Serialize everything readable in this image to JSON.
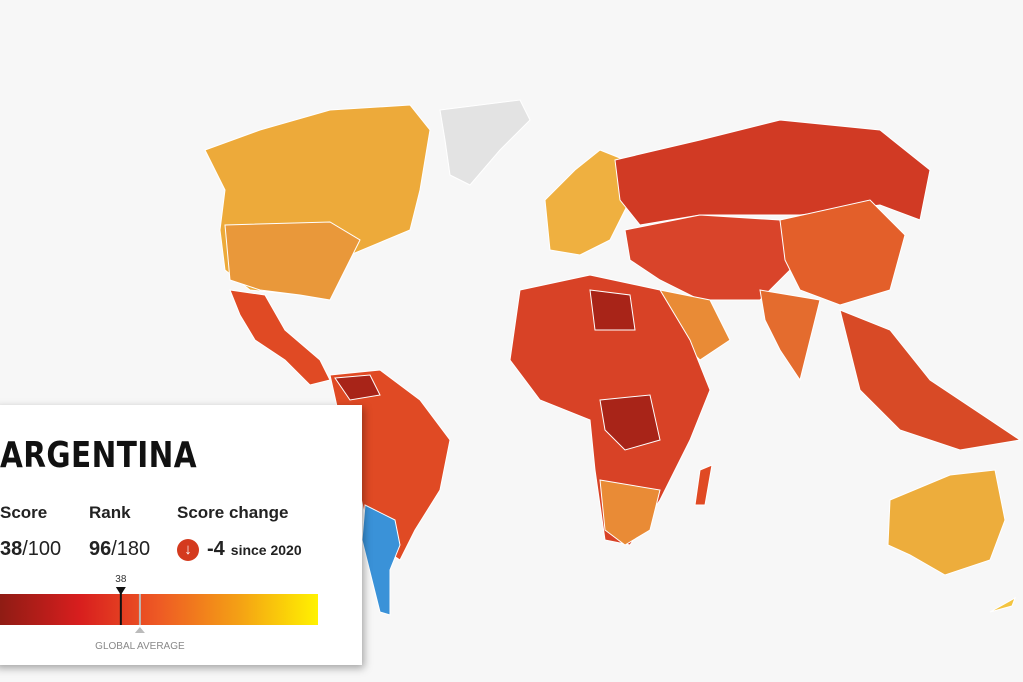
{
  "country": "ARGENTINA",
  "score_label": "Score",
  "score": 38,
  "score_max": "/100",
  "rank_label": "Rank",
  "rank": 96,
  "rank_max": "/180",
  "change_label": "Score change",
  "change": "-4",
  "change_since": "since 2020",
  "scale": {
    "xlim": [
      0,
      100
    ],
    "marker_label": "38",
    "global_average": 44,
    "global_average_label": "GLOBAL AVERAGE"
  }
}
